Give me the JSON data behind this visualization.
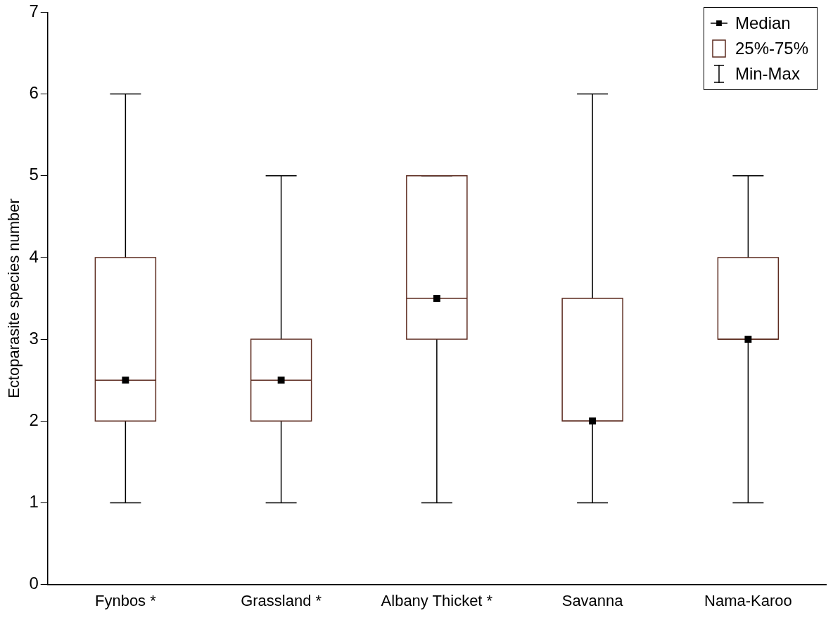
{
  "chart_data": {
    "type": "box",
    "ylabel": "Ectoparasite species number",
    "categories": [
      "Fynbos *",
      "Grassland *",
      "Albany Thicket *",
      "Savanna",
      "Nama-Karoo"
    ],
    "series": [
      {
        "color": "#5c2b1f",
        "boxes": [
          {
            "low": 1,
            "q1": 2,
            "median": 2.5,
            "q3": 4,
            "high": 6
          },
          {
            "low": 1,
            "q1": 2,
            "median": 2.5,
            "q3": 3,
            "high": 5
          },
          {
            "low": 1,
            "q1": 3,
            "median": 3.5,
            "q3": 5,
            "high": 5
          },
          {
            "low": 1,
            "q1": 2,
            "median": 2,
            "q3": 3.5,
            "high": 6
          },
          {
            "low": 1,
            "q1": 3,
            "median": 3,
            "q3": 4,
            "high": 5
          }
        ]
      },
      {
        "type": "scatter",
        "color": "#000000",
        "x": [
          "Fynbos *",
          "Grassland *",
          "Albany Thicket *",
          "Savanna",
          "Nama-Karoo"
        ],
        "values": [
          2.5,
          2.5,
          3.5,
          2,
          3
        ]
      }
    ],
    "ylim": [
      0,
      7
    ],
    "yticks": [
      0,
      1,
      2,
      3,
      4,
      5,
      6,
      7
    ],
    "grid": false,
    "marker": "square",
    "annotations": [
      "Median",
      "25%-75%",
      "Min-Max"
    ]
  }
}
